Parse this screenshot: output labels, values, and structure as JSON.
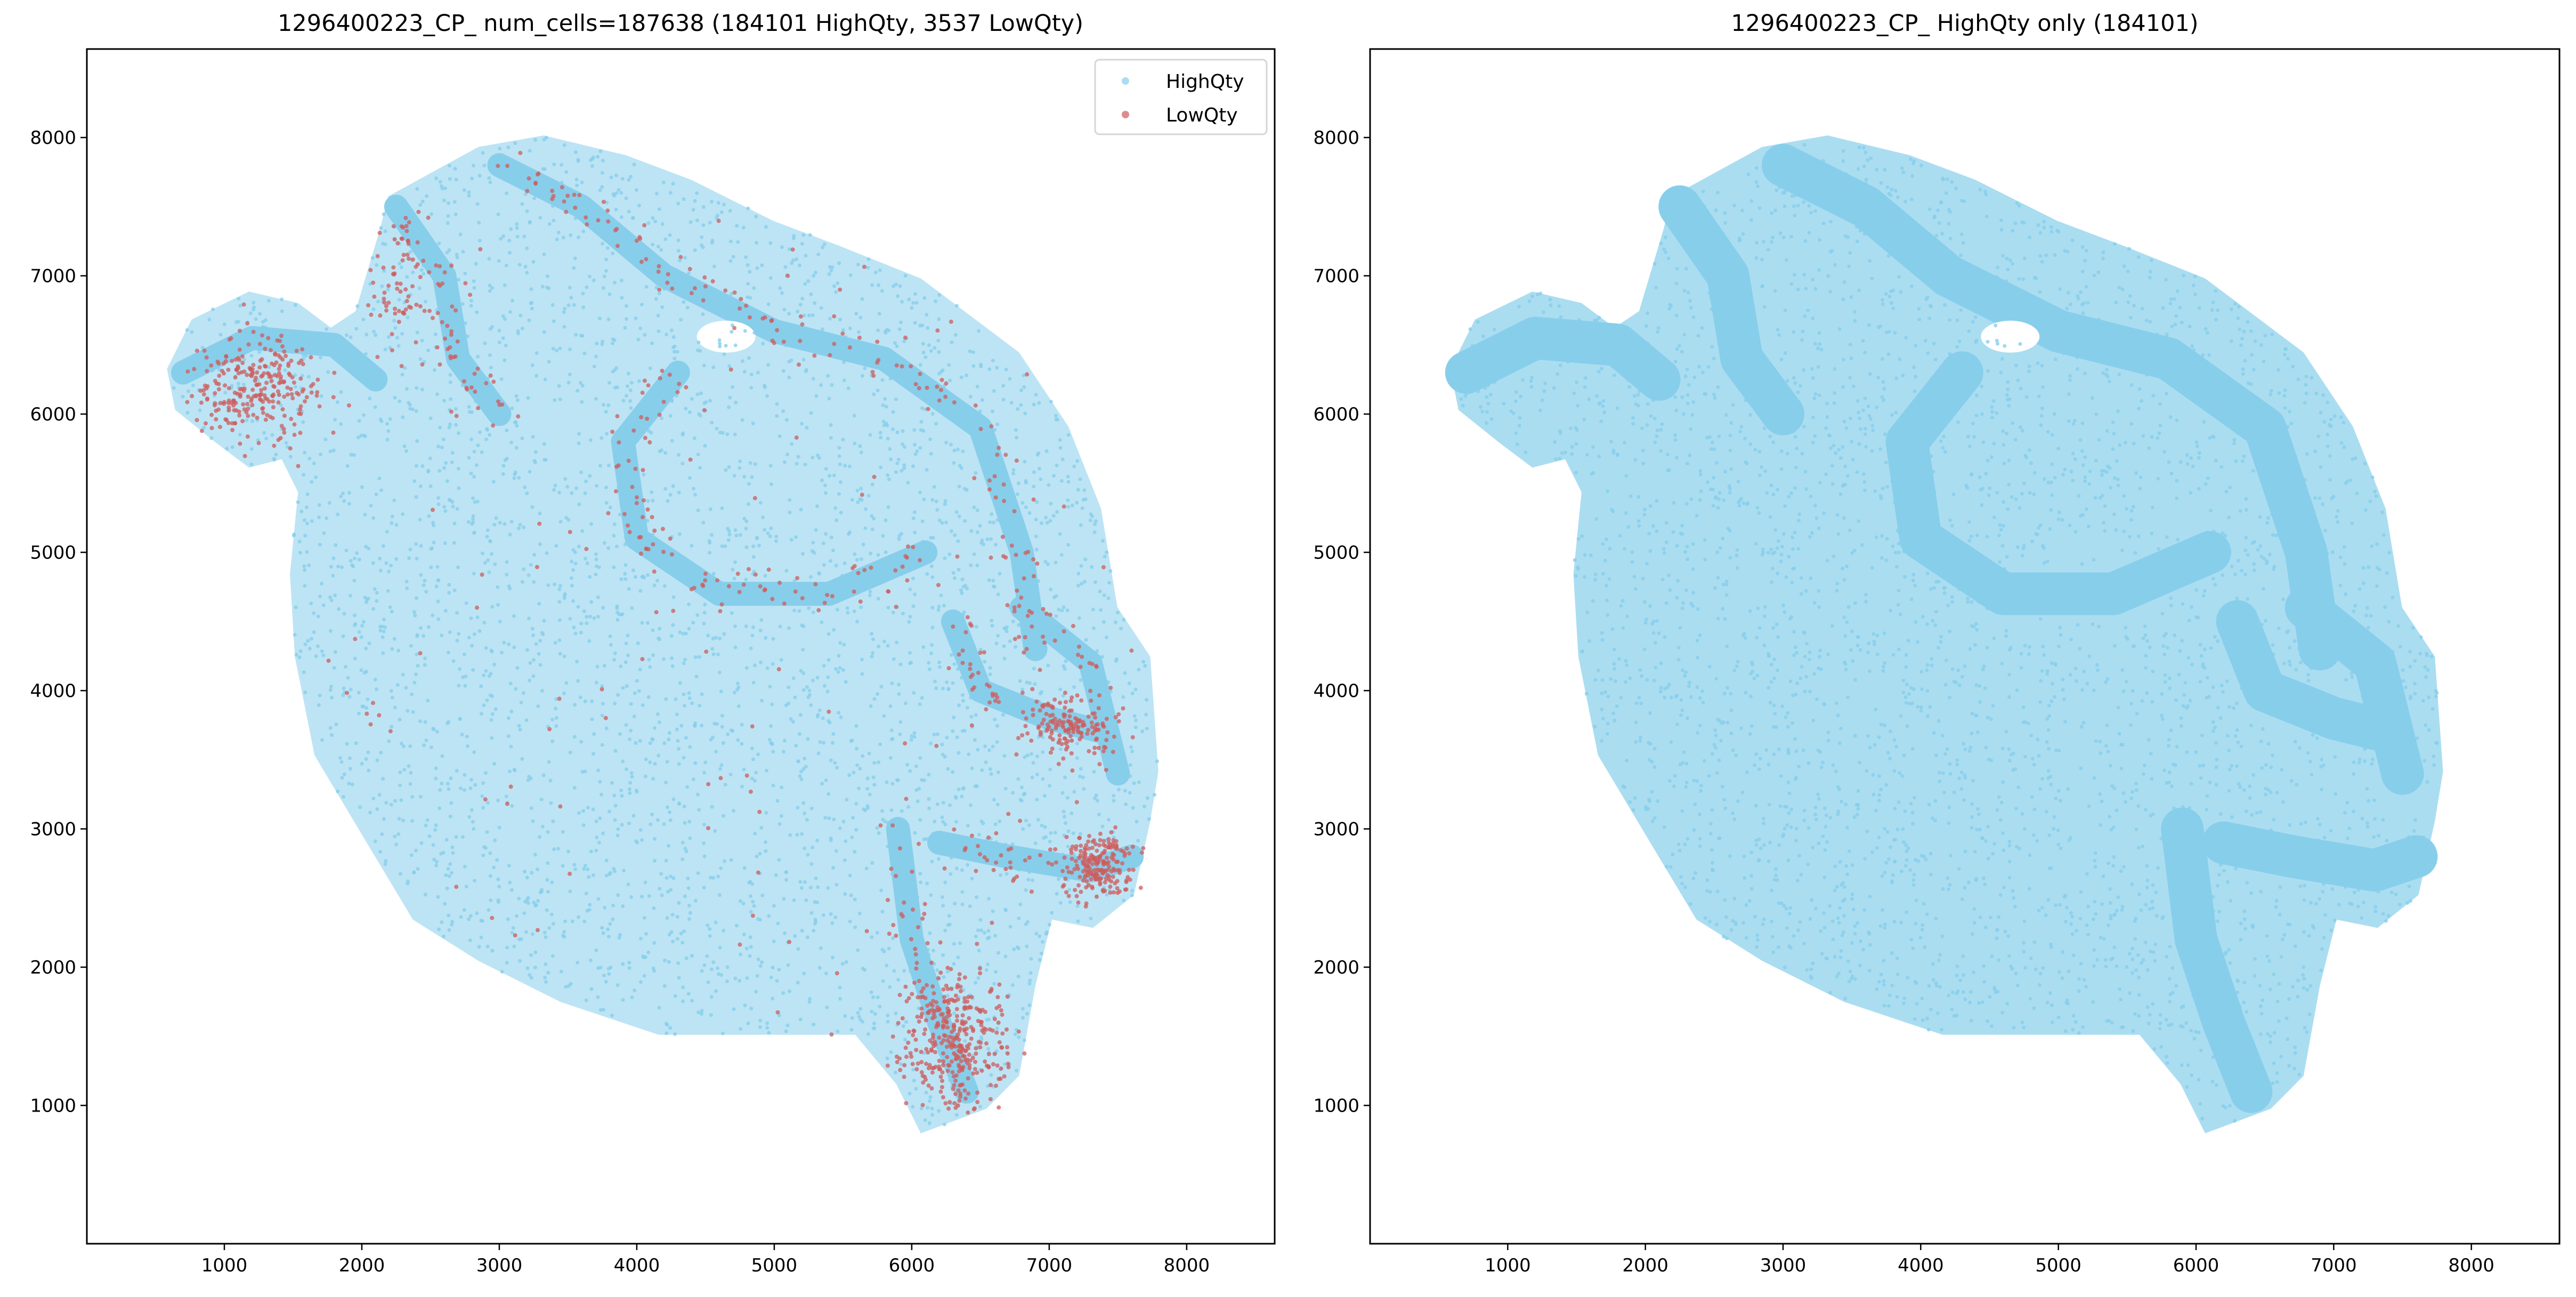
{
  "chart_data": [
    {
      "type": "scatter",
      "title": "1296400223_CP_ num_cells=187638 (184101 HighQty, 3537 LowQty)",
      "xlim": [
        0,
        8640
      ],
      "ylim": [
        0,
        8640
      ],
      "xticks": [
        1000,
        2000,
        3000,
        4000,
        5000,
        6000,
        7000,
        8000
      ],
      "yticks": [
        1000,
        2000,
        3000,
        4000,
        5000,
        6000,
        7000,
        8000
      ],
      "grid": false,
      "legend": {
        "placement": "top-right",
        "entries": [
          "HighQty",
          "LowQty"
        ]
      },
      "series": [
        {
          "name": "HighQty",
          "count": 184101,
          "color": "#87CEEB"
        },
        {
          "name": "LowQty",
          "count": 3537,
          "color": "#CD5C5C"
        }
      ]
    },
    {
      "type": "scatter",
      "title": "1296400223_CP_ HighQty only (184101)",
      "xlim": [
        0,
        8640
      ],
      "ylim": [
        0,
        8640
      ],
      "xticks": [
        1000,
        2000,
        3000,
        4000,
        5000,
        6000,
        7000,
        8000
      ],
      "yticks": [
        1000,
        2000,
        3000,
        4000,
        5000,
        6000,
        7000,
        8000
      ],
      "grid": false,
      "series": [
        {
          "name": "HighQty",
          "count": 184101,
          "color": "#87CEEB"
        }
      ]
    }
  ]
}
